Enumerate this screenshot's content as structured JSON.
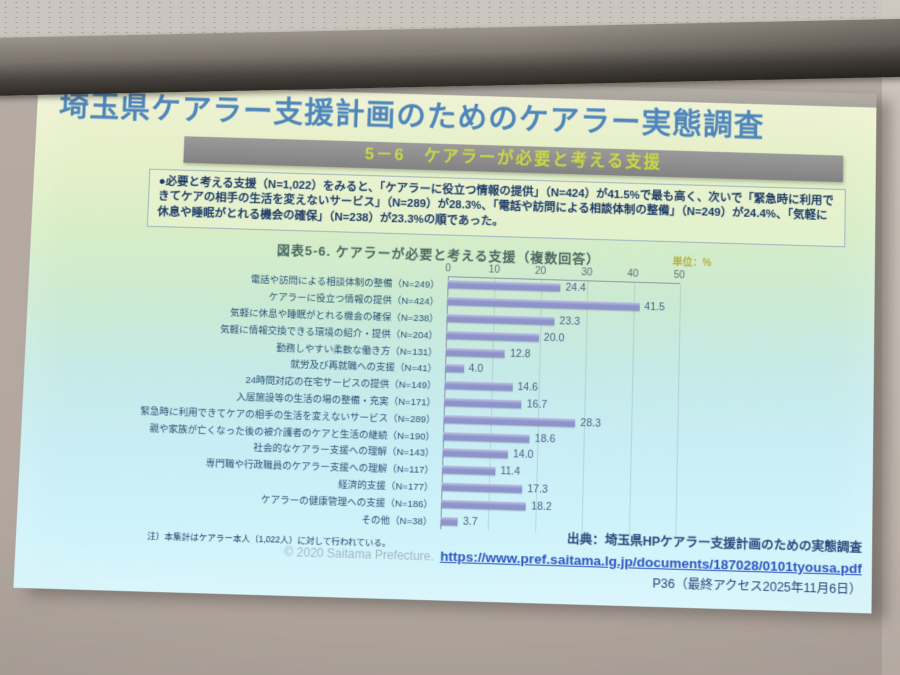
{
  "slide": {
    "title": "埼玉県ケアラー支援計画のためのケアラー実態調査",
    "section_header": "5－6　ケアラーが必要と考える支援",
    "body_text": "●必要と考える支援（N=1,022）をみると、「ケアラーに役立つ情報の提供」（N=424）が41.5%で最も高く、次いで「緊急時に利用できてケアの相手の生活を変えないサービス」（N=289）が28.3%、「電話や訪問による相談体制の整備」（N=249）が24.4%、「気軽に休息や睡眠がとれる機会の確保」（N=238）が23.3%の順であった。",
    "footnote": "注）本集計はケアラー本人（1,022人）に対して行われている。",
    "copyright": "© 2020 Saitama Prefecture.",
    "source_line1": "出典：埼玉県HPケアラー支援計画のための実態調査",
    "source_url": "https://www.pref.saitama.lg.jp/documents/187028/0101tyousa.pdf",
    "source_line3": "P36（最終アクセス2025年11月6日）"
  },
  "chart_data": {
    "type": "bar",
    "orientation": "horizontal",
    "title": "図表5-6. ケアラーが必要と考える支援（複数回答）",
    "unit_label": "単位：%",
    "xlabel": "",
    "ylabel": "",
    "xlim": [
      0,
      50
    ],
    "x_ticks": [
      0,
      10,
      20,
      30,
      40,
      50
    ],
    "grid": true,
    "legend": false,
    "categories": [
      "電話や訪問による相談体制の整備（N=249）",
      "ケアラーに役立つ情報の提供（N=424）",
      "気軽に休息や睡眠がとれる機会の確保（N=238）",
      "気軽に情報交換できる環境の紹介・提供（N=204）",
      "勤務しやすい柔軟な働き方（N=131）",
      "就労及び再就職への支援（N=41）",
      "24時間対応の在宅サービスの提供（N=149）",
      "入居施設等の生活の場の整備・充実（N=171）",
      "緊急時に利用できてケアの相手の生活を変えないサービス（N=289）",
      "親や家族が亡くなった後の被介護者のケアと生活の継続（N=190）",
      "社会的なケアラー支援への理解（N=143）",
      "専門職や行政職員のケアラー支援への理解（N=117）",
      "経済的支援（N=177）",
      "ケアラーの健康管理への支援（N=186）",
      "その他（N=38）"
    ],
    "values": [
      24.4,
      41.5,
      23.3,
      20.0,
      12.8,
      4.0,
      14.6,
      16.7,
      28.3,
      18.6,
      14.0,
      11.4,
      17.3,
      18.2,
      3.7
    ]
  },
  "colors": {
    "title_text": "#4e86bc",
    "section_bar_bg": "#828282",
    "section_bar_text": "#cbd944",
    "body_text": "#1d3a66",
    "chart_title_text": "#4a6660",
    "unit_label_text": "#b2b13e",
    "category_label_text": "#2b5276",
    "value_label_text": "#4c6089",
    "bar_fill": "#8e93cb",
    "axis_line": "#8798a2",
    "footnote_text": "#1d3a66",
    "source_text": "#2b4a7d",
    "copyright_text": "#a2b7c8",
    "link_text": "#2d54c0"
  }
}
